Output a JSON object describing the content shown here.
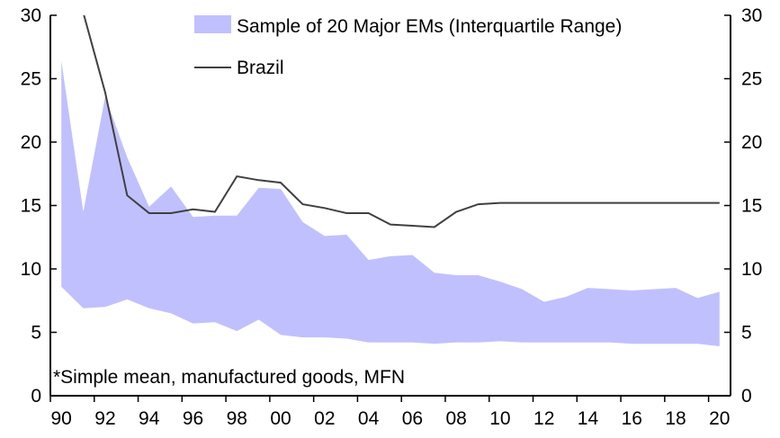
{
  "chart_data": {
    "type": "area",
    "title": "",
    "xlabel": "",
    "ylabel": "",
    "ylim": [
      0,
      30
    ],
    "y_ticks": [
      "0",
      "5",
      "10",
      "15",
      "20",
      "25",
      "30"
    ],
    "x_tick_labels": [
      "90",
      "92",
      "94",
      "96",
      "98",
      "00",
      "02",
      "04",
      "06",
      "08",
      "10",
      "12",
      "14",
      "16",
      "18",
      "20"
    ],
    "x": [
      1990,
      1991,
      1992,
      1993,
      1994,
      1995,
      1996,
      1997,
      1998,
      1999,
      2000,
      2001,
      2002,
      2003,
      2004,
      2005,
      2006,
      2007,
      2008,
      2009,
      2010,
      2011,
      2012,
      2013,
      2014,
      2015,
      2016,
      2017,
      2018,
      2019,
      2020
    ],
    "series": [
      {
        "name": "Sample of 20 Major EMs (Interquartile Range)",
        "type": "band",
        "color": "#c0c0ff",
        "upper": [
          26.4,
          14.5,
          23.6,
          18.8,
          14.9,
          16.5,
          14.1,
          14.2,
          14.2,
          16.4,
          16.3,
          13.7,
          12.6,
          12.7,
          10.7,
          11.0,
          11.1,
          9.7,
          9.5,
          9.5,
          9.0,
          8.4,
          7.4,
          7.8,
          8.5,
          8.4,
          8.3,
          8.4,
          8.5,
          7.7,
          8.2
        ],
        "lower": [
          8.6,
          6.9,
          7.0,
          7.6,
          6.9,
          6.5,
          5.7,
          5.8,
          5.1,
          6.0,
          4.8,
          4.6,
          4.6,
          4.5,
          4.2,
          4.2,
          4.2,
          4.1,
          4.2,
          4.2,
          4.3,
          4.2,
          4.2,
          4.2,
          4.2,
          4.2,
          4.1,
          4.1,
          4.1,
          4.1,
          3.9
        ]
      },
      {
        "name": "Brazil",
        "type": "line",
        "color": "#404040",
        "values": [
          null,
          30.2,
          23.9,
          15.8,
          14.4,
          14.4,
          14.7,
          14.5,
          17.3,
          17.0,
          16.8,
          15.1,
          14.8,
          14.4,
          14.4,
          13.5,
          13.4,
          13.3,
          14.5,
          15.1,
          15.2,
          15.2,
          15.2,
          15.2,
          15.2,
          15.2,
          15.2,
          15.2,
          15.2,
          15.2,
          15.2
        ]
      }
    ],
    "legend": {
      "placement": "top-right"
    },
    "annotation": "*Simple mean, manufactured goods, MFN",
    "grid": false
  }
}
